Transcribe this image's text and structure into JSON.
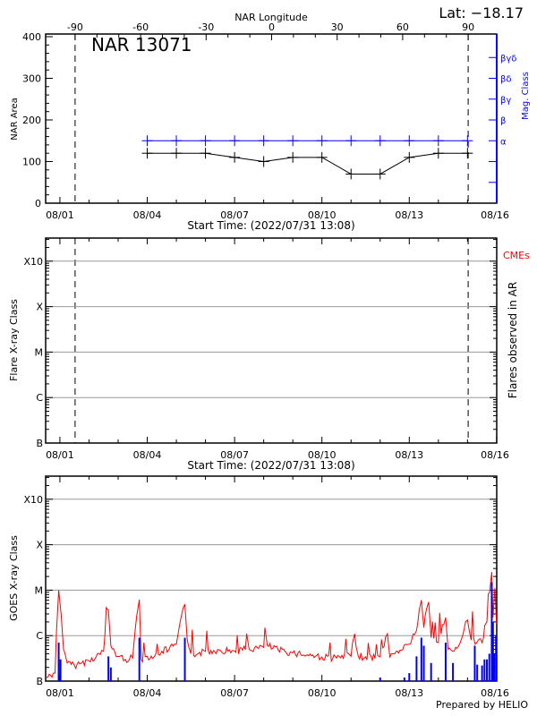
{
  "colors": {
    "axis": "#000000",
    "mag": "#0000ff",
    "goes": "#ff0000",
    "flare_bar": "#0000ff",
    "grid": "#999999",
    "cme": "#ff0000"
  },
  "header": {
    "lat_label": "Lat: −18.17",
    "region_label": "NAR 13071"
  },
  "footer": {
    "credit": "Prepared by HELIO"
  },
  "chart_data": [
    {
      "type": "line",
      "title": "NAR 13071",
      "xlabel": "Start Time: (2022/07/31 13:08)",
      "ylabel": "NAR Area",
      "y2label": "Mag. Class",
      "top_axis_label": "NAR Longitude",
      "top_axis_ticks": [
        "-90",
        "-60",
        "-30",
        "0",
        "30",
        "60",
        "90"
      ],
      "x_tick_labels": [
        "08/01",
        "08/04",
        "08/07",
        "08/10",
        "08/13",
        "08/16"
      ],
      "ylim": [
        0,
        400
      ],
      "y_tick_labels": [
        "0",
        "100",
        "200",
        "300",
        "400"
      ],
      "y2_tick_labels": [
        "α",
        "β",
        "βγ",
        "βδ",
        "βγδ"
      ],
      "limb_longitudes": [
        -90,
        90
      ],
      "dates": [
        "08/04",
        "08/05",
        "08/06",
        "08/07",
        "08/08",
        "08/09",
        "08/10",
        "08/11",
        "08/12",
        "08/13",
        "08/14",
        "08/15"
      ],
      "series": [
        {
          "name": "NAR Area",
          "values": [
            120,
            120,
            120,
            110,
            100,
            110,
            110,
            70,
            70,
            110,
            120,
            120
          ]
        },
        {
          "name": "Mag. Class",
          "values": [
            "α",
            "α",
            "α",
            "α",
            "α",
            "α",
            "α",
            "α",
            "α",
            "α",
            "α",
            "α"
          ]
        }
      ]
    },
    {
      "type": "scatter",
      "xlabel": "Start Time: (2022/07/31 13:08)",
      "ylabel": "Flare X-ray Class",
      "y2label": "Flares observed in AR",
      "cme_label": "CMEs",
      "x_tick_labels": [
        "08/01",
        "08/04",
        "08/07",
        "08/10",
        "08/13",
        "08/16"
      ],
      "y_tick_labels": [
        "B",
        "C",
        "M",
        "X",
        "X10"
      ],
      "log_scale": true,
      "grid": true,
      "points": []
    },
    {
      "type": "line",
      "ylabel": "GOES X-ray Class",
      "x_tick_labels": [
        "08/01",
        "08/04",
        "08/07",
        "08/10",
        "08/13",
        "08/16"
      ],
      "y_tick_labels": [
        "B",
        "C",
        "M",
        "X",
        "X10"
      ],
      "log_scale": true,
      "grid": true,
      "flux": [
        [
          "07/31 13:00",
          1.2e-07
        ],
        [
          "07/31 20:00",
          1.5e-07
        ],
        [
          "07/31 23:00",
          1e-05
        ],
        [
          "08/01 01:00",
          3e-06
        ],
        [
          "08/01 03:00",
          5e-07
        ],
        [
          "08/01 06:00",
          2.5e-07
        ],
        [
          "08/01 12:00",
          2.2e-07
        ],
        [
          "08/01 18:00",
          2.5e-07
        ],
        [
          "08/02 00:00",
          2.8e-07
        ],
        [
          "08/02 06:00",
          3.5e-07
        ],
        [
          "08/02 12:00",
          4.5e-07
        ],
        [
          "08/02 16:00",
          3.6e-06
        ],
        [
          "08/02 18:00",
          6e-07
        ],
        [
          "08/03 00:00",
          3.5e-07
        ],
        [
          "08/03 06:00",
          3e-07
        ],
        [
          "08/03 12:00",
          3.2e-07
        ],
        [
          "08/03 17:30",
          6.2e-06
        ],
        [
          "08/03 19:00",
          3e-07
        ],
        [
          "08/04 00:00",
          3.5e-07
        ],
        [
          "08/04 06:00",
          3.5e-07
        ],
        [
          "08/04 12:00",
          4.5e-07
        ],
        [
          "08/04 18:00",
          5e-07
        ],
        [
          "08/05 00:00",
          6.5e-07
        ],
        [
          "08/05 07:00",
          4.9e-06
        ],
        [
          "08/05 09:00",
          8e-07
        ],
        [
          "08/05 12:00",
          4e-07
        ],
        [
          "08/05 18:00",
          4e-07
        ],
        [
          "08/06 00:00",
          4.5e-07
        ],
        [
          "08/06 12:00",
          4.8e-07
        ],
        [
          "08/07 00:00",
          4.6e-07
        ],
        [
          "08/07 12:00",
          5e-07
        ],
        [
          "08/08 00:00",
          5.5e-07
        ],
        [
          "08/08 01:00",
          1.5e-06
        ],
        [
          "08/08 03:00",
          6e-07
        ],
        [
          "08/08 12:00",
          4.8e-07
        ],
        [
          "08/09 00:00",
          4.2e-07
        ],
        [
          "08/09 12:00",
          3.8e-07
        ],
        [
          "08/10 00:00",
          3.4e-07
        ],
        [
          "08/10 12:00",
          3.2e-07
        ],
        [
          "08/11 00:00",
          3.5e-07
        ],
        [
          "08/11 03:00",
          1.1e-06
        ],
        [
          "08/11 06:00",
          3.5e-07
        ],
        [
          "08/11 12:00",
          3.4e-07
        ],
        [
          "08/12 00:00",
          3.4e-07
        ],
        [
          "08/12 06:00",
          1.1e-06
        ],
        [
          "08/12 08:00",
          3.3e-07
        ],
        [
          "08/12 12:00",
          4e-07
        ],
        [
          "08/13 00:00",
          6.5e-07
        ],
        [
          "08/13 06:00",
          1.3e-06
        ],
        [
          "08/13 10:00",
          6e-06
        ],
        [
          "08/13 12:00",
          1.5e-06
        ],
        [
          "08/13 16:00",
          5.5e-06
        ],
        [
          "08/13 18:00",
          9e-07
        ],
        [
          "08/14 00:00",
          7e-07
        ],
        [
          "08/14 06:00",
          2.5e-06
        ],
        [
          "08/14 08:00",
          5e-07
        ],
        [
          "08/14 12:00",
          4.5e-07
        ],
        [
          "08/14 18:00",
          7e-07
        ],
        [
          "08/15 00:00",
          2.2e-06
        ],
        [
          "08/15 03:00",
          8e-07
        ],
        [
          "08/15 12:00",
          7e-07
        ],
        [
          "08/15 16:00",
          2e-06
        ],
        [
          "08/15 20:00",
          2.5e-05
        ],
        [
          "08/15 21:00",
          2.5e-06
        ],
        [
          "08/15 22:30",
          1.1e-05
        ],
        [
          "08/16 00:00",
          1.8e-06
        ]
      ],
      "flare_bars": [
        [
          "07/31 23:00",
          7e-07
        ],
        [
          "08/01 00:30",
          3e-07
        ],
        [
          "08/02 16:00",
          3.5e-07
        ],
        [
          "08/02 18:00",
          2e-07
        ],
        [
          "08/03 17:30",
          9e-07
        ],
        [
          "08/05 07:00",
          9e-07
        ],
        [
          "08/12 00:00",
          1.2e-07
        ],
        [
          "08/12 20:00",
          1.2e-07
        ],
        [
          "08/13 00:00",
          1.5e-07
        ],
        [
          "08/13 06:00",
          3.5e-07
        ],
        [
          "08/13 10:00",
          9e-07
        ],
        [
          "08/13 12:00",
          6e-07
        ],
        [
          "08/13 18:00",
          2.5e-07
        ],
        [
          "08/14 06:00",
          7e-07
        ],
        [
          "08/14 12:00",
          2.5e-07
        ],
        [
          "08/15 06:00",
          6e-07
        ],
        [
          "08/15 08:00",
          2.3e-07
        ],
        [
          "08/15 12:00",
          2.2e-07
        ],
        [
          "08/15 14:00",
          3e-07
        ],
        [
          "08/15 16:00",
          3e-07
        ],
        [
          "08/15 18:00",
          4e-07
        ],
        [
          "08/15 20:00",
          1.5e-05
        ],
        [
          "08/15 21:00",
          2e-06
        ],
        [
          "08/15 22:00",
          4e-07
        ],
        [
          "08/15 23:30",
          1e-06
        ]
      ]
    }
  ]
}
